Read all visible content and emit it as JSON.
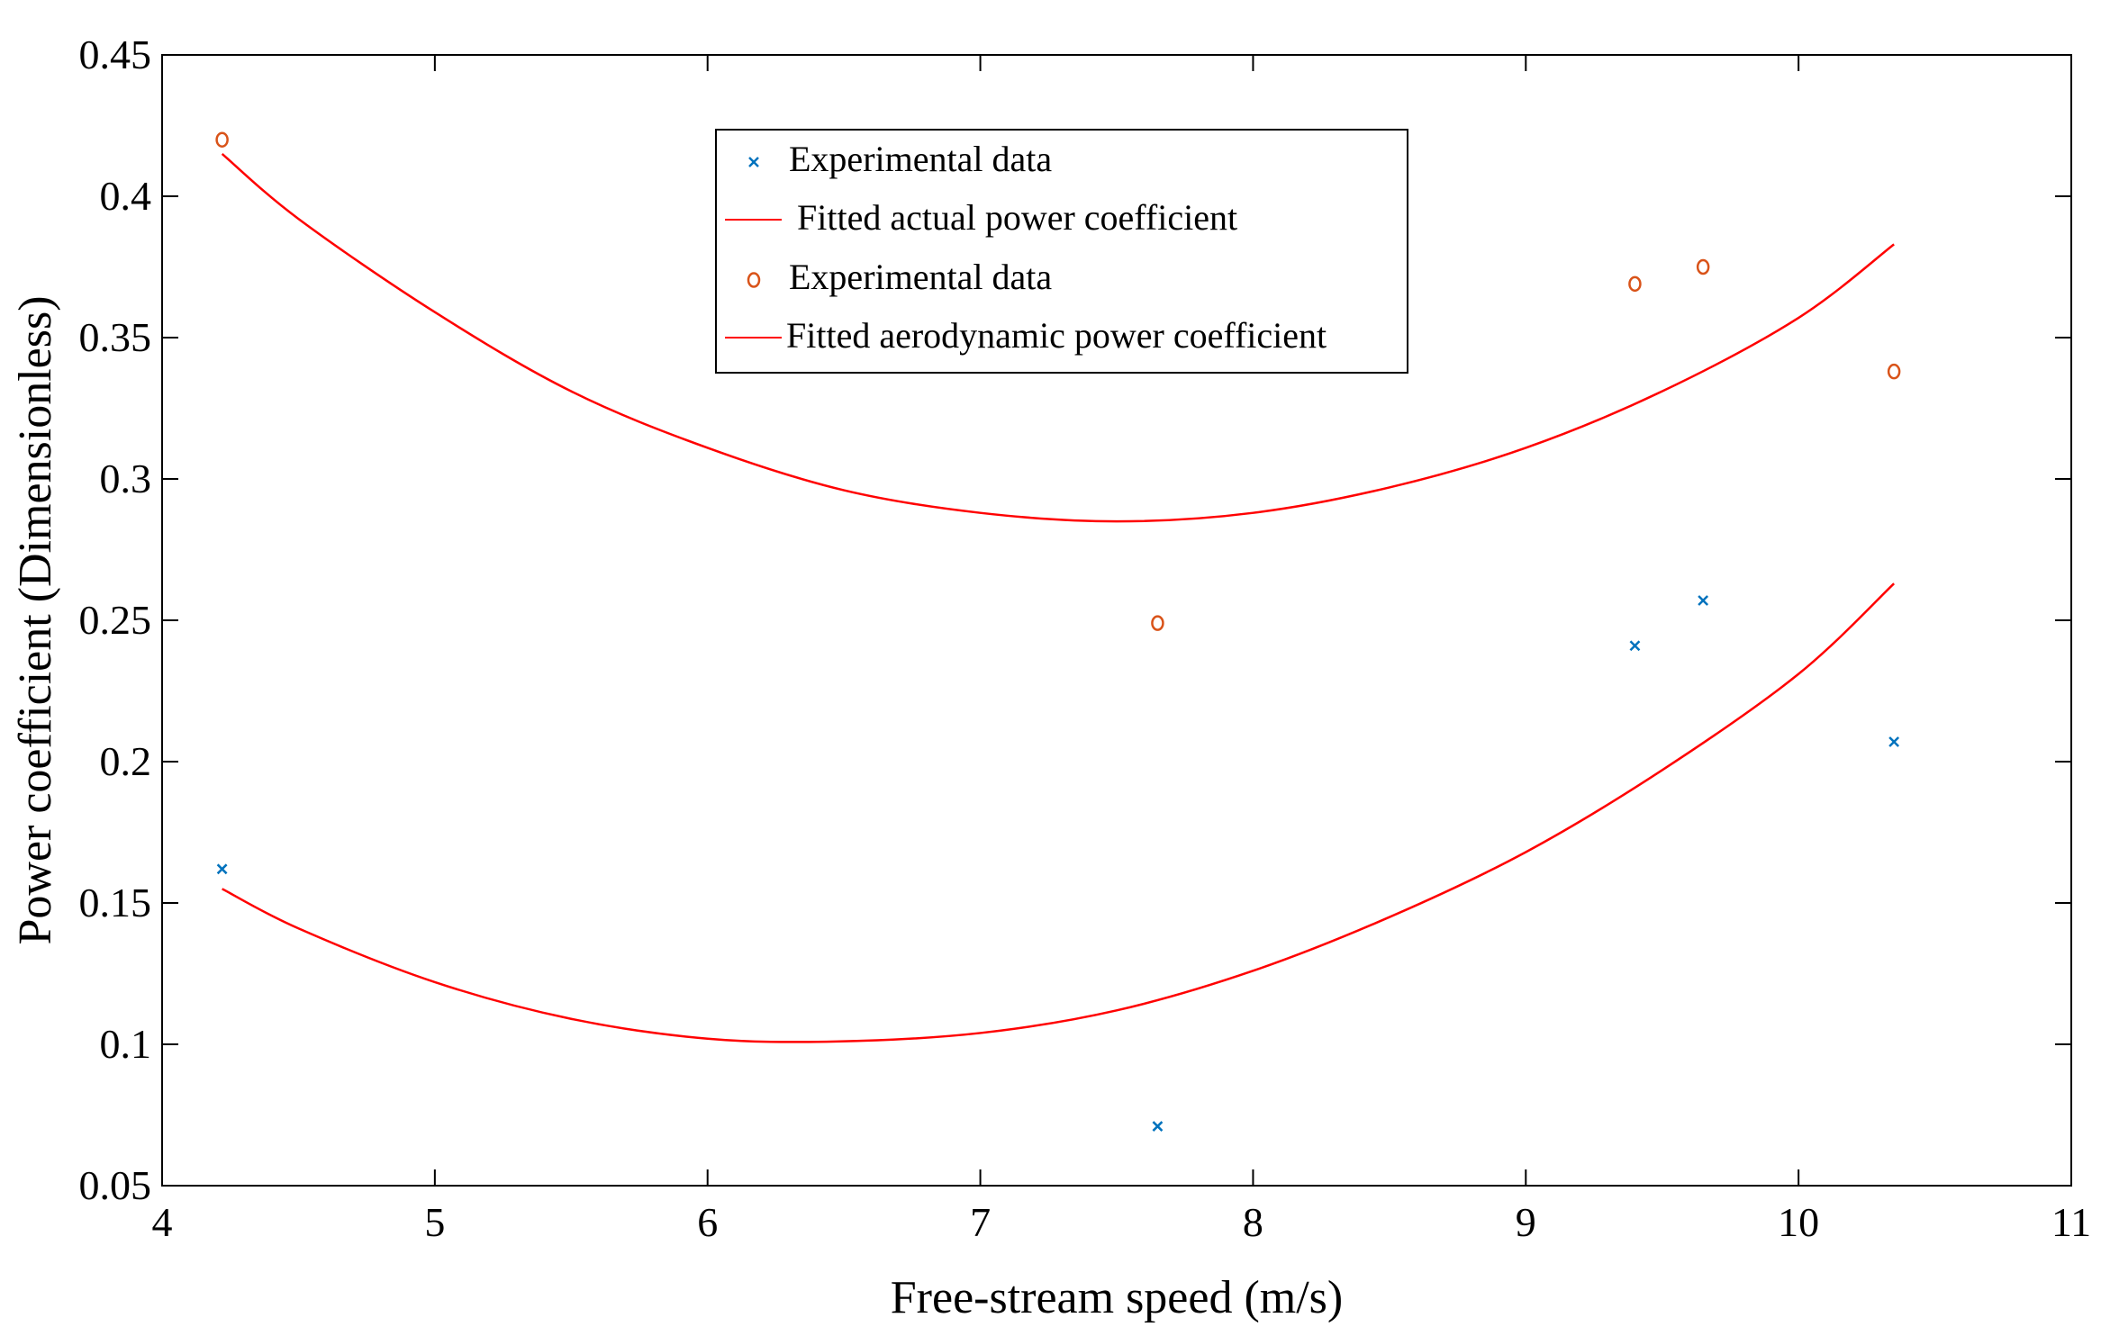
{
  "chart_data": {
    "type": "scatter",
    "title": "",
    "xlabel": "Free-stream speed (m/s)",
    "ylabel": "Power coefficient (Dimensionless)",
    "xlim": [
      4,
      11
    ],
    "ylim": [
      0.05,
      0.45
    ],
    "xticks": [
      4,
      5,
      6,
      7,
      8,
      9,
      10,
      11
    ],
    "xtick_labels": [
      "4",
      "5",
      "6",
      "7",
      "8",
      "9",
      "10",
      "11"
    ],
    "yticks": [
      0.05,
      0.1,
      0.15,
      0.2,
      0.25,
      0.3,
      0.35,
      0.4,
      0.45
    ],
    "ytick_labels": [
      "0.05",
      "0.1",
      "0.15",
      "0.2",
      "0.25",
      "0.3",
      "0.35",
      "0.4",
      "0.45"
    ],
    "grid": false,
    "legend_position": "top-center",
    "series": [
      {
        "name": "Experimental data",
        "kind": "scatter",
        "marker": "x",
        "color": "#0072BD",
        "x": [
          4.22,
          7.65,
          9.4,
          9.65,
          10.35
        ],
        "y": [
          0.162,
          0.071,
          0.241,
          0.257,
          0.207
        ]
      },
      {
        "name": "Fitted actual power coefficient",
        "kind": "line",
        "color": "#FF0000",
        "x": [
          4.22,
          4.5,
          5.0,
          5.5,
          6.0,
          6.47,
          7.0,
          7.5,
          8.0,
          8.5,
          9.0,
          9.5,
          10.0,
          10.35
        ],
        "y": [
          0.155,
          0.141,
          0.122,
          0.109,
          0.102,
          0.101,
          0.104,
          0.112,
          0.126,
          0.145,
          0.168,
          0.197,
          0.231,
          0.263
        ]
      },
      {
        "name": "Experimental data",
        "kind": "scatter",
        "marker": "o",
        "color": "#D95319",
        "x": [
          4.22,
          7.65,
          9.4,
          9.65,
          10.35
        ],
        "y": [
          0.42,
          0.249,
          0.369,
          0.375,
          0.338
        ]
      },
      {
        "name": "Fitted aerodynamic power coefficient",
        "kind": "line",
        "color": "#FF0000",
        "x": [
          4.22,
          4.5,
          5.0,
          5.5,
          6.0,
          6.5,
          7.0,
          7.5,
          8.0,
          8.5,
          9.0,
          9.5,
          10.0,
          10.35
        ],
        "y": [
          0.415,
          0.392,
          0.359,
          0.331,
          0.311,
          0.296,
          0.288,
          0.285,
          0.288,
          0.297,
          0.311,
          0.331,
          0.357,
          0.383
        ]
      }
    ]
  }
}
